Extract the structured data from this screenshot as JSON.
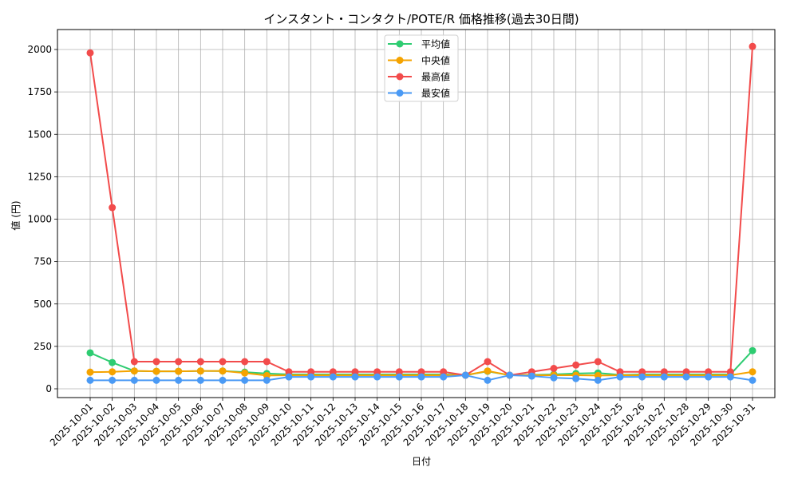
{
  "chart_data": {
    "type": "line",
    "title": "インスタント・コンタクト/POTE/R 価格推移(過去30日間)",
    "xlabel": "日付",
    "ylabel": "値 (円)",
    "ylim": [
      -110,
      2110
    ],
    "yticks": [
      0,
      250,
      500,
      750,
      1000,
      1250,
      1500,
      1750,
      2000
    ],
    "grid": true,
    "legend_position": "upper center",
    "x": [
      "2025-10-01",
      "2025-10-02",
      "2025-10-03",
      "2025-10-04",
      "2025-10-05",
      "2025-10-06",
      "2025-10-07",
      "2025-10-08",
      "2025-10-09",
      "2025-10-10",
      "2025-10-11",
      "2025-10-12",
      "2025-10-13",
      "2025-10-14",
      "2025-10-15",
      "2025-10-16",
      "2025-10-17",
      "2025-10-18",
      "2025-10-19",
      "2025-10-20",
      "2025-10-21",
      "2025-10-22",
      "2025-10-23",
      "2025-10-24",
      "2025-10-25",
      "2025-10-26",
      "2025-10-27",
      "2025-10-28",
      "2025-10-29",
      "2025-10-30",
      "2025-10-31"
    ],
    "series": [
      {
        "name": "平均値",
        "color": "#2ecc71",
        "values": [
          212,
          155,
          105,
          103,
          103,
          105,
          105,
          98,
          90,
          85,
          85,
          85,
          85,
          85,
          85,
          85,
          85,
          80,
          103,
          80,
          82,
          85,
          90,
          93,
          82,
          85,
          85,
          85,
          85,
          85,
          225
        ]
      },
      {
        "name": "中央値",
        "color": "#f5a300",
        "values": [
          98,
          100,
          105,
          103,
          103,
          105,
          105,
          93,
          78,
          80,
          80,
          80,
          80,
          80,
          80,
          80,
          80,
          80,
          105,
          80,
          80,
          80,
          80,
          78,
          80,
          80,
          80,
          80,
          80,
          80,
          100
        ]
      },
      {
        "name": "最高値",
        "color": "#f24b4b",
        "values": [
          1980,
          1068,
          160,
          160,
          160,
          160,
          160,
          160,
          160,
          100,
          100,
          100,
          100,
          100,
          100,
          100,
          100,
          80,
          160,
          80,
          100,
          120,
          140,
          160,
          100,
          100,
          100,
          100,
          100,
          100,
          2018
        ]
      },
      {
        "name": "最安値",
        "color": "#4a9af5",
        "values": [
          50,
          50,
          50,
          50,
          50,
          50,
          50,
          50,
          50,
          70,
          70,
          70,
          70,
          70,
          70,
          70,
          70,
          80,
          50,
          80,
          75,
          65,
          60,
          50,
          70,
          70,
          70,
          70,
          70,
          70,
          50
        ]
      }
    ]
  }
}
